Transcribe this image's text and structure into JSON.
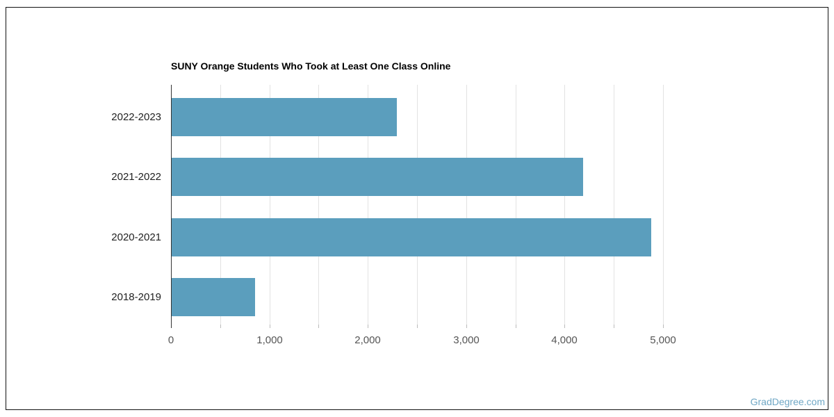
{
  "frame": {
    "background": "#ffffff",
    "border_color": "#111111"
  },
  "watermark": {
    "text": "GradDegree.com",
    "color": "#6fa7c5"
  },
  "chart_data": {
    "type": "bar",
    "orientation": "horizontal",
    "title": "SUNY Orange Students Who Took at Least One Class Online",
    "categories": [
      "2022-2023",
      "2021-2022",
      "2020-2021",
      "2018-2019"
    ],
    "values": [
      2290,
      4180,
      4870,
      850
    ],
    "xlabel": "",
    "ylabel": "",
    "xlim": [
      0,
      5000
    ],
    "x_tick_step": 1000,
    "x_gridline_step": 500,
    "x_tick_labels": [
      "0",
      "1,000",
      "2,000",
      "3,000",
      "4,000",
      "5,000"
    ],
    "grid": true,
    "legend": "none",
    "bar_color": "#5b9ebd",
    "gridline_color": "#e2e2e2",
    "axis_line_color": "#333333",
    "tick_color": "#bbbbbb",
    "title_color": "#000000",
    "y_label_color": "#222222",
    "x_label_color": "#555555"
  }
}
